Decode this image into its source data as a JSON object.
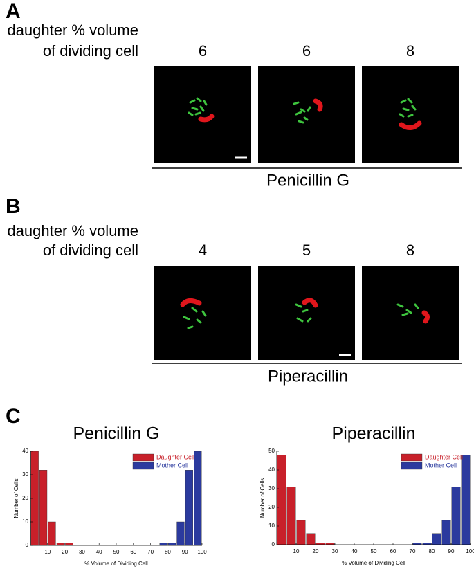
{
  "panels": [
    {
      "label": "A",
      "caption": [
        "daughter % volume",
        "of dividing cell"
      ],
      "values": [
        6,
        6,
        8
      ],
      "drug": "Penicillin G"
    },
    {
      "label": "B",
      "caption": [
        "daughter % volume",
        "of dividing cell"
      ],
      "values": [
        4,
        5,
        8
      ],
      "drug": "Piperacillin"
    }
  ],
  "panel_c_label": "C",
  "chart_data": [
    {
      "type": "histogram",
      "title": "Penicillin G",
      "x_label": "% Volume of Dividing Cell",
      "y_label": "Number of Cells",
      "bins": [
        0,
        5,
        10,
        15,
        20,
        25,
        30,
        35,
        40,
        45,
        50,
        55,
        60,
        65,
        70,
        75,
        80,
        85,
        90,
        95,
        100
      ],
      "series": [
        {
          "name": "Daughter Cell",
          "color": "#c8202a",
          "values": [
            40,
            32,
            10,
            1,
            1,
            0,
            0,
            0,
            0,
            0,
            0,
            0,
            0,
            0,
            0,
            0,
            0,
            0,
            0,
            0
          ]
        },
        {
          "name": "Mother Cell",
          "color": "#2b3a9e",
          "values": [
            0,
            0,
            0,
            0,
            0,
            0,
            0,
            0,
            0,
            0,
            0,
            0,
            0,
            0,
            0,
            1,
            1,
            10,
            32,
            40
          ]
        }
      ],
      "xlim": [
        0,
        100
      ],
      "ylim": [
        0,
        40
      ],
      "xticks": [
        10,
        20,
        30,
        40,
        50,
        60,
        70,
        80,
        90,
        100
      ],
      "yticks": [
        0,
        10,
        20,
        30,
        40
      ],
      "legend": "upper right"
    },
    {
      "type": "histogram",
      "title": "Piperacillin",
      "x_label": "% Volume of Dividing Cell",
      "y_label": "Number of Cells",
      "bins": [
        0,
        5,
        10,
        15,
        20,
        25,
        30,
        35,
        40,
        45,
        50,
        55,
        60,
        65,
        70,
        75,
        80,
        85,
        90,
        95,
        100
      ],
      "series": [
        {
          "name": "Daughter Cell",
          "color": "#c8202a",
          "values": [
            48,
            31,
            13,
            6,
            1,
            1,
            0,
            0,
            0,
            0,
            0,
            0,
            0,
            0,
            0,
            0,
            0,
            0,
            0,
            0
          ]
        },
        {
          "name": "Mother Cell",
          "color": "#2b3a9e",
          "values": [
            0,
            0,
            0,
            0,
            0,
            0,
            0,
            0,
            0,
            0,
            0,
            0,
            0,
            0,
            1,
            1,
            6,
            13,
            31,
            48
          ]
        }
      ],
      "xlim": [
        0,
        100
      ],
      "ylim": [
        0,
        50
      ],
      "xticks": [
        10,
        20,
        30,
        40,
        50,
        60,
        70,
        80,
        90,
        100
      ],
      "yticks": [
        0,
        10,
        20,
        30,
        40,
        50
      ],
      "legend": "upper right"
    }
  ]
}
